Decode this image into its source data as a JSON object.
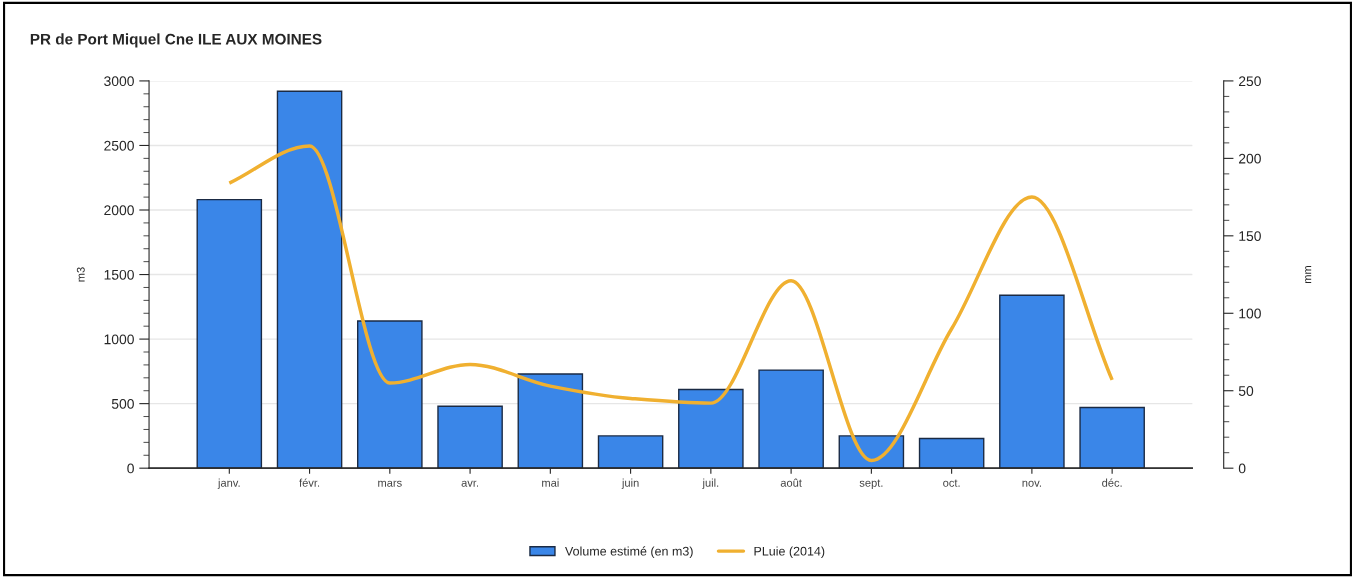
{
  "chart_data": {
    "type": "bar",
    "title": "PR de Port Miquel Cne ILE AUX MOINES",
    "categories": [
      "janv.",
      "févr.",
      "mars",
      "avr.",
      "mai",
      "juin",
      "juil.",
      "août",
      "sept.",
      "oct.",
      "nov.",
      "déc."
    ],
    "series": [
      {
        "name": "Volume estimé (en m3)",
        "color": "#3a86e8",
        "values": [
          2080,
          2920,
          1140,
          480,
          730,
          250,
          610,
          760,
          250,
          230,
          1340,
          470
        ]
      },
      {
        "name": "PLuie (2014)",
        "type": "line",
        "axis": "y2",
        "color": "#f0b030",
        "values": [
          184,
          208,
          55,
          67,
          53,
          45,
          42,
          121,
          5,
          90,
          175,
          57
        ]
      }
    ],
    "ylabel": "m3",
    "y2label": "mm",
    "ylim": [
      0,
      3000
    ],
    "yticks": [
      0,
      500,
      1000,
      1500,
      2000,
      2500,
      3000
    ],
    "y2lim": [
      0,
      250
    ],
    "y2ticks": [
      0,
      50,
      100,
      150,
      200,
      250
    ],
    "grid": "y",
    "legend": "bottom"
  }
}
